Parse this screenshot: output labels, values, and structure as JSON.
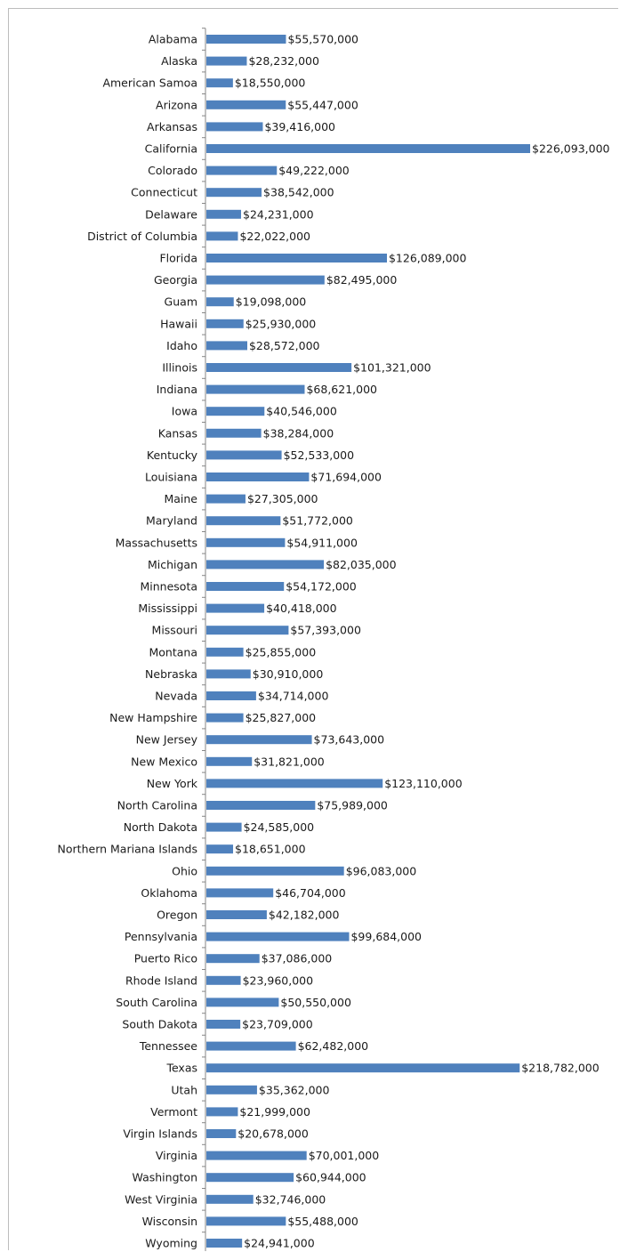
{
  "chart_data": {
    "type": "bar",
    "orientation": "horizontal",
    "title": "",
    "xlabel": "",
    "ylabel": "",
    "categories": [
      "Alabama",
      "Alaska",
      "American Samoa",
      "Arizona",
      "Arkansas",
      "California",
      "Colorado",
      "Connecticut",
      "Delaware",
      "District of Columbia",
      "Florida",
      "Georgia",
      "Guam",
      "Hawaii",
      "Idaho",
      "Illinois",
      "Indiana",
      "Iowa",
      "Kansas",
      "Kentucky",
      "Louisiana",
      "Maine",
      "Maryland",
      "Massachusetts",
      "Michigan",
      "Minnesota",
      "Mississippi",
      "Missouri",
      "Montana",
      "Nebraska",
      "Nevada",
      "New Hampshire",
      "New Jersey",
      "New Mexico",
      "New York",
      "North Carolina",
      "North Dakota",
      "Northern Mariana Islands",
      "Ohio",
      "Oklahoma",
      "Oregon",
      "Pennsylvania",
      "Puerto Rico",
      "Rhode Island",
      "South Carolina",
      "South Dakota",
      "Tennessee",
      "Texas",
      "Utah",
      "Vermont",
      "Virgin Islands",
      "Virginia",
      "Washington",
      "West Virginia",
      "Wisconsin",
      "Wyoming"
    ],
    "values": [
      55570000,
      28232000,
      18550000,
      55447000,
      39416000,
      226093000,
      49222000,
      38542000,
      24231000,
      22022000,
      126089000,
      82495000,
      19098000,
      25930000,
      28572000,
      101321000,
      68621000,
      40546000,
      38284000,
      52533000,
      71694000,
      27305000,
      51772000,
      54911000,
      82035000,
      54172000,
      40418000,
      57393000,
      25855000,
      30910000,
      34714000,
      25827000,
      73643000,
      31821000,
      123110000,
      75989000,
      24585000,
      18651000,
      96083000,
      46704000,
      42182000,
      99684000,
      37086000,
      23960000,
      50550000,
      23709000,
      62482000,
      218782000,
      35362000,
      21999000,
      20678000,
      70001000,
      60944000,
      32746000,
      55488000,
      24941000
    ],
    "value_labels": [
      "$55,570,000",
      "$28,232,000",
      "$18,550,000",
      "$55,447,000",
      "$39,416,000",
      "$226,093,000",
      "$49,222,000",
      "$38,542,000",
      "$24,231,000",
      "$22,022,000",
      "$126,089,000",
      "$82,495,000",
      "$19,098,000",
      "$25,930,000",
      "$28,572,000",
      "$101,321,000",
      "$68,621,000",
      "$40,546,000",
      "$38,284,000",
      "$52,533,000",
      "$71,694,000",
      "$27,305,000",
      "$51,772,000",
      "$54,911,000",
      "$82,035,000",
      "$54,172,000",
      "$40,418,000",
      "$57,393,000",
      "$25,855,000",
      "$30,910,000",
      "$34,714,000",
      "$25,827,000",
      "$73,643,000",
      "$31,821,000",
      "$123,110,000",
      "$75,989,000",
      "$24,585,000",
      "$18,651,000",
      "$96,083,000",
      "$46,704,000",
      "$42,182,000",
      "$99,684,000",
      "$37,086,000",
      "$23,960,000",
      "$50,550,000",
      "$23,709,000",
      "$62,482,000",
      "$218,782,000",
      "$35,362,000",
      "$21,999,000",
      "$20,678,000",
      "$70,001,000",
      "$60,944,000",
      "$32,746,000",
      "$55,488,000",
      "$24,941,000"
    ],
    "xlim": [
      0,
      226093000
    ],
    "grid": false,
    "legend": "none",
    "colors": {
      "bar": "#4f81bd",
      "axis": "#868686",
      "text": "#1a1a1a",
      "border": "#bdbdbd"
    }
  }
}
